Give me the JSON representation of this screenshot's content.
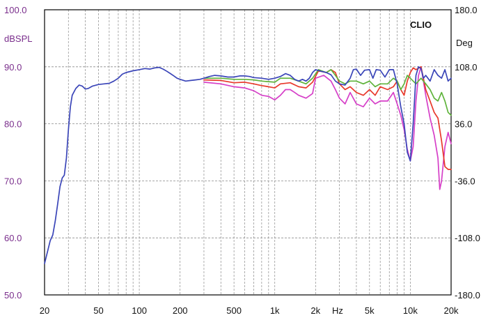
{
  "chart_data": {
    "type": "line",
    "brand": "CLIO",
    "ylabel": "dBSPL",
    "y2label": "Deg",
    "xunit": "Hz",
    "xscale": "log",
    "xlim": [
      20,
      20000
    ],
    "ylim": [
      50,
      100
    ],
    "y2lim": [
      -180,
      180
    ],
    "grid": true,
    "y_ticks": [
      "100.0",
      "90.0",
      "80.0",
      "70.0",
      "60.0",
      "50.0"
    ],
    "y2_ticks": [
      "180.0",
      "108.0",
      "36.0",
      "-36.0",
      "-108.0",
      "-180.0"
    ],
    "x_ticks": [
      {
        "v": 20,
        "label": "20"
      },
      {
        "v": 50,
        "label": "50"
      },
      {
        "v": 100,
        "label": "100"
      },
      {
        "v": 200,
        "label": "200"
      },
      {
        "v": 500,
        "label": "500"
      },
      {
        "v": 1000,
        "label": "1k"
      },
      {
        "v": 2000,
        "label": "2k"
      },
      {
        "v": 5000,
        "label": "5k"
      },
      {
        "v": 10000,
        "label": "10k"
      },
      {
        "v": 20000,
        "label": "20k"
      }
    ],
    "series": [
      {
        "color": "#d63fc8",
        "points": [
          [
            300,
            87.3
          ],
          [
            400,
            87.0
          ],
          [
            500,
            86.5
          ],
          [
            600,
            86.3
          ],
          [
            700,
            85.8
          ],
          [
            800,
            85.0
          ],
          [
            900,
            84.8
          ],
          [
            1000,
            84.2
          ],
          [
            1100,
            85.0
          ],
          [
            1200,
            86.0
          ],
          [
            1300,
            86.0
          ],
          [
            1400,
            85.5
          ],
          [
            1500,
            85.0
          ],
          [
            1700,
            84.5
          ],
          [
            1900,
            85.3
          ],
          [
            2000,
            88.0
          ],
          [
            2300,
            88.5
          ],
          [
            2600,
            87.5
          ],
          [
            2800,
            86.0
          ],
          [
            3000,
            84.5
          ],
          [
            3300,
            83.5
          ],
          [
            3600,
            85.5
          ],
          [
            4000,
            83.5
          ],
          [
            4500,
            83.0
          ],
          [
            5000,
            84.5
          ],
          [
            5500,
            83.5
          ],
          [
            6000,
            84.0
          ],
          [
            6800,
            84.0
          ],
          [
            7500,
            85.5
          ],
          [
            8000,
            83.5
          ],
          [
            8500,
            81.5
          ],
          [
            9000,
            79.0
          ],
          [
            9500,
            75.5
          ],
          [
            10000,
            73.5
          ],
          [
            10500,
            76.0
          ],
          [
            11000,
            84.0
          ],
          [
            11500,
            88.5
          ],
          [
            12000,
            90.0
          ],
          [
            13000,
            85.0
          ],
          [
            14000,
            81.0
          ],
          [
            15000,
            78.0
          ],
          [
            16000,
            74.0
          ],
          [
            16500,
            68.5
          ],
          [
            17000,
            70.0
          ],
          [
            18000,
            76.0
          ],
          [
            19000,
            78.5
          ],
          [
            20000,
            76.5
          ]
        ]
      },
      {
        "color": "#e8382a",
        "points": [
          [
            300,
            87.7
          ],
          [
            400,
            87.6
          ],
          [
            500,
            87.2
          ],
          [
            600,
            87.3
          ],
          [
            700,
            87.0
          ],
          [
            800,
            86.7
          ],
          [
            900,
            86.5
          ],
          [
            1000,
            86.3
          ],
          [
            1100,
            87.0
          ],
          [
            1300,
            87.2
          ],
          [
            1500,
            86.5
          ],
          [
            1700,
            86.3
          ],
          [
            1900,
            87.3
          ],
          [
            2100,
            89.3
          ],
          [
            2400,
            89.0
          ],
          [
            2600,
            89.5
          ],
          [
            2800,
            89.0
          ],
          [
            3000,
            87.0
          ],
          [
            3300,
            86.0
          ],
          [
            3600,
            86.5
          ],
          [
            4000,
            85.5
          ],
          [
            4500,
            85.0
          ],
          [
            5000,
            86.0
          ],
          [
            5500,
            85.0
          ],
          [
            6000,
            86.5
          ],
          [
            6800,
            86.0
          ],
          [
            7500,
            86.5
          ],
          [
            8000,
            87.5
          ],
          [
            8500,
            86.0
          ],
          [
            9000,
            85.0
          ],
          [
            9500,
            87.5
          ],
          [
            10000,
            89.0
          ],
          [
            10500,
            89.8
          ],
          [
            11000,
            89.5
          ],
          [
            12000,
            90.0
          ],
          [
            13000,
            86.0
          ],
          [
            14000,
            84.0
          ],
          [
            15000,
            82.0
          ],
          [
            16000,
            81.0
          ],
          [
            17000,
            77.0
          ],
          [
            18000,
            72.5
          ],
          [
            19000,
            72.0
          ],
          [
            20000,
            72.0
          ]
        ]
      },
      {
        "color": "#5fb33b",
        "points": [
          [
            300,
            88.0
          ],
          [
            400,
            88.0
          ],
          [
            500,
            87.8
          ],
          [
            600,
            87.8
          ],
          [
            700,
            87.7
          ],
          [
            800,
            87.5
          ],
          [
            900,
            87.4
          ],
          [
            1000,
            87.3
          ],
          [
            1100,
            88.0
          ],
          [
            1300,
            88.0
          ],
          [
            1500,
            87.5
          ],
          [
            1700,
            87.0
          ],
          [
            1900,
            88.0
          ],
          [
            2100,
            89.5
          ],
          [
            2400,
            89.0
          ],
          [
            2600,
            89.5
          ],
          [
            2800,
            88.5
          ],
          [
            3000,
            87.5
          ],
          [
            3300,
            87.0
          ],
          [
            3600,
            87.5
          ],
          [
            4000,
            87.5
          ],
          [
            4500,
            87.0
          ],
          [
            5000,
            87.5
          ],
          [
            5500,
            86.5
          ],
          [
            6000,
            87.0
          ],
          [
            6800,
            87.0
          ],
          [
            7500,
            88.0
          ],
          [
            8000,
            87.5
          ],
          [
            8500,
            86.0
          ],
          [
            9000,
            87.0
          ],
          [
            9500,
            88.5
          ],
          [
            10000,
            88.0
          ],
          [
            11000,
            87.0
          ],
          [
            12000,
            88.0
          ],
          [
            13000,
            87.0
          ],
          [
            14000,
            86.0
          ],
          [
            15000,
            84.5
          ],
          [
            16000,
            84.0
          ],
          [
            17000,
            85.5
          ],
          [
            18000,
            84.0
          ],
          [
            19000,
            82.0
          ],
          [
            20000,
            81.5
          ]
        ]
      },
      {
        "color": "#3a45b8",
        "points": [
          [
            20,
            55.5
          ],
          [
            21,
            57.5
          ],
          [
            22,
            59.5
          ],
          [
            23,
            60.5
          ],
          [
            24,
            63.0
          ],
          [
            25,
            66.0
          ],
          [
            26,
            69.0
          ],
          [
            27,
            70.5
          ],
          [
            28,
            71.0
          ],
          [
            29,
            74.0
          ],
          [
            30,
            79.0
          ],
          [
            31,
            83.0
          ],
          [
            32,
            85.0
          ],
          [
            34,
            86.2
          ],
          [
            36,
            86.8
          ],
          [
            38,
            86.6
          ],
          [
            40,
            86.1
          ],
          [
            42,
            86.2
          ],
          [
            45,
            86.6
          ],
          [
            50,
            86.9
          ],
          [
            55,
            87.0
          ],
          [
            60,
            87.1
          ],
          [
            65,
            87.5
          ],
          [
            70,
            88.0
          ],
          [
            75,
            88.7
          ],
          [
            80,
            89.0
          ],
          [
            90,
            89.3
          ],
          [
            100,
            89.5
          ],
          [
            110,
            89.7
          ],
          [
            120,
            89.6
          ],
          [
            130,
            89.8
          ],
          [
            140,
            89.9
          ],
          [
            150,
            89.6
          ],
          [
            160,
            89.2
          ],
          [
            170,
            88.8
          ],
          [
            180,
            88.4
          ],
          [
            190,
            88.0
          ],
          [
            200,
            87.8
          ],
          [
            220,
            87.5
          ],
          [
            240,
            87.6
          ],
          [
            260,
            87.7
          ],
          [
            280,
            87.8
          ],
          [
            300,
            88.0
          ],
          [
            330,
            88.3
          ],
          [
            360,
            88.5
          ],
          [
            400,
            88.4
          ],
          [
            450,
            88.2
          ],
          [
            500,
            88.2
          ],
          [
            550,
            88.4
          ],
          [
            600,
            88.4
          ],
          [
            650,
            88.3
          ],
          [
            700,
            88.1
          ],
          [
            800,
            88.0
          ],
          [
            900,
            87.8
          ],
          [
            1000,
            88.0
          ],
          [
            1100,
            88.3
          ],
          [
            1200,
            88.8
          ],
          [
            1300,
            88.5
          ],
          [
            1400,
            87.8
          ],
          [
            1500,
            87.5
          ],
          [
            1600,
            87.8
          ],
          [
            1700,
            87.5
          ],
          [
            1800,
            88.0
          ],
          [
            1900,
            89.0
          ],
          [
            2000,
            89.5
          ],
          [
            2200,
            89.2
          ],
          [
            2400,
            89.0
          ],
          [
            2600,
            88.6
          ],
          [
            2800,
            87.5
          ],
          [
            3000,
            87.0
          ],
          [
            3300,
            86.8
          ],
          [
            3600,
            88.0
          ],
          [
            3800,
            89.5
          ],
          [
            4000,
            89.6
          ],
          [
            4300,
            88.5
          ],
          [
            4600,
            89.4
          ],
          [
            5000,
            89.5
          ],
          [
            5300,
            88.0
          ],
          [
            5600,
            89.5
          ],
          [
            6000,
            89.4
          ],
          [
            6500,
            88.2
          ],
          [
            7000,
            89.5
          ],
          [
            7500,
            89.5
          ],
          [
            8000,
            87.0
          ],
          [
            8500,
            83.0
          ],
          [
            9000,
            80.0
          ],
          [
            9500,
            75.0
          ],
          [
            10000,
            73.5
          ],
          [
            10500,
            80.0
          ],
          [
            11000,
            88.5
          ],
          [
            11500,
            90.0
          ],
          [
            12000,
            89.7
          ],
          [
            12500,
            88.0
          ],
          [
            13000,
            88.5
          ],
          [
            14000,
            87.5
          ],
          [
            15000,
            89.5
          ],
          [
            16000,
            88.5
          ],
          [
            17000,
            88.0
          ],
          [
            18000,
            89.5
          ],
          [
            19000,
            87.5
          ],
          [
            20000,
            88.0
          ]
        ]
      }
    ]
  }
}
